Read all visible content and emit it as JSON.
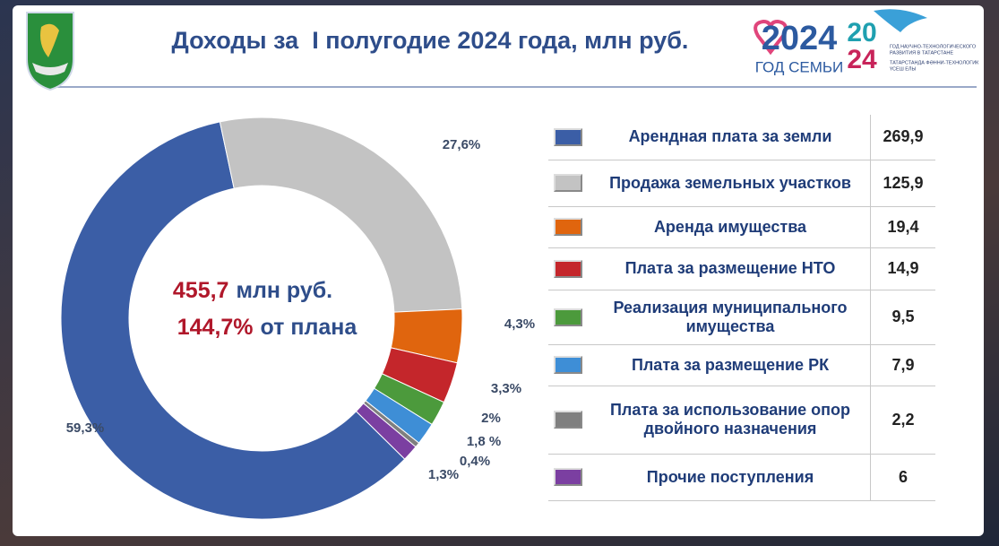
{
  "title": "Доходы за  I полугодие 2024 года, млн руб.",
  "logo": {
    "year": "2024",
    "caption": "ГОД СЕМЬИ",
    "year2_top": "20",
    "year2_bottom": "24",
    "small_lines": [
      "ГОД НАУЧНО-ТЕХНОЛОГИЧЕСКОГО",
      "РАЗВИТИЯ В ТАТАРСТАНЕ",
      "ТАТАРСТАНДА ФӘННИ-ТЕХНОЛОГИК",
      "ҮСЕШ ЕЛЫ"
    ]
  },
  "chart_data": {
    "type": "donut",
    "categories": [
      "Арендная плата за земли",
      "Продажа земельных участков",
      "Аренда имущества",
      "Плата за размещение НТО",
      "Реализация муниципального имущества",
      "Плата за размещение РК",
      "Плата за использование опор двойного назначения",
      "Прочие поступления"
    ],
    "values": [
      59.3,
      27.6,
      4.3,
      3.3,
      2,
      1.8,
      0.4,
      1.3
    ],
    "value_labels": [
      "59,3%",
      "27,6%",
      "4,3%",
      "3,3%",
      "2%",
      "1,8 %",
      "0,4%",
      "1,3%"
    ],
    "colors": [
      "#3b5ea6",
      "#c3c3c3",
      "#e0650e",
      "#c4262b",
      "#4c9a3c",
      "#3e8ed6",
      "#7f7f7f",
      "#7b3fa1"
    ],
    "amounts": [
      "269,9",
      "125,9",
      "19,4",
      "14,9",
      "9,5",
      "7,9",
      "2,2",
      "6"
    ],
    "center": {
      "total": "455,7",
      "total_unit": "млн руб.",
      "plan": "144,7%",
      "plan_unit": "от плана"
    }
  }
}
